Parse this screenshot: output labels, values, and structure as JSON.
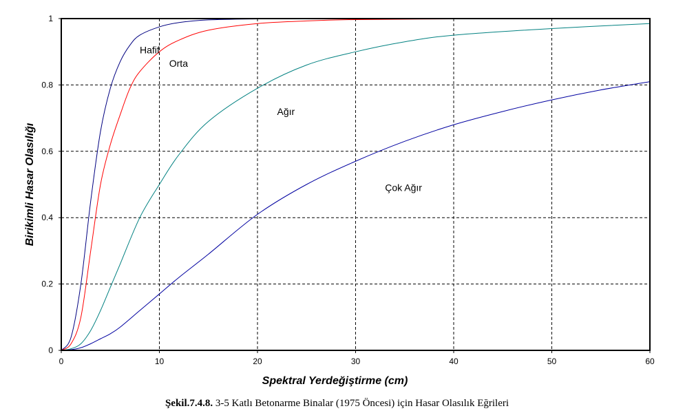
{
  "chart_data": {
    "type": "line",
    "xlabel": "Spektral Yerdeğiştirme  (cm)",
    "ylabel": "Birikimli Hasar Olasılığı",
    "xlim": [
      0,
      60
    ],
    "ylim": [
      0,
      1
    ],
    "x_ticks": [
      "0",
      "10",
      "20",
      "30",
      "40",
      "50",
      "60"
    ],
    "y_ticks": [
      "0",
      "0.2",
      "0.4",
      "0.6",
      "0.8",
      "1"
    ],
    "grid": true,
    "series": [
      {
        "name": "Hafif",
        "color": "#000080",
        "x": [
          0,
          1,
          2,
          3,
          4,
          5,
          6,
          7,
          8,
          10,
          12,
          15,
          20,
          25,
          30,
          40,
          50,
          60
        ],
        "y": [
          0,
          0.04,
          0.2,
          0.45,
          0.66,
          0.79,
          0.87,
          0.92,
          0.95,
          0.975,
          0.988,
          0.996,
          0.999,
          1,
          1,
          1,
          1,
          1
        ]
      },
      {
        "name": "Orta",
        "color": "#ff0000",
        "x": [
          0,
          1,
          2,
          3,
          4,
          5,
          6,
          7,
          8,
          10,
          12,
          15,
          20,
          25,
          30,
          40,
          50,
          60
        ],
        "y": [
          0,
          0.02,
          0.1,
          0.3,
          0.5,
          0.62,
          0.71,
          0.79,
          0.84,
          0.9,
          0.935,
          0.965,
          0.985,
          0.993,
          0.997,
          0.999,
          1,
          1
        ]
      },
      {
        "name": "Ağır",
        "color": "#008080",
        "x": [
          0,
          1,
          2,
          3,
          4,
          5,
          6,
          8,
          10,
          12,
          15,
          20,
          25,
          30,
          35,
          40,
          50,
          60
        ],
        "y": [
          0,
          0.005,
          0.02,
          0.06,
          0.12,
          0.19,
          0.26,
          0.4,
          0.5,
          0.59,
          0.69,
          0.79,
          0.86,
          0.9,
          0.93,
          0.95,
          0.97,
          0.985
        ]
      },
      {
        "name": "Çok Ağır",
        "color": "#0000a0",
        "x": [
          0,
          1,
          2,
          3,
          4,
          5,
          6,
          8,
          10,
          12,
          15,
          20,
          25,
          30,
          35,
          40,
          45,
          50,
          55,
          60
        ],
        "y": [
          0,
          0.002,
          0.008,
          0.02,
          0.035,
          0.05,
          0.07,
          0.12,
          0.17,
          0.22,
          0.29,
          0.41,
          0.5,
          0.57,
          0.63,
          0.68,
          0.72,
          0.755,
          0.785,
          0.81
        ]
      }
    ],
    "annotations": [
      {
        "text": "Hafif",
        "x": 8,
        "y": 0.895
      },
      {
        "text": "Orta",
        "x": 11,
        "y": 0.855
      },
      {
        "text": "Ağır",
        "x": 22,
        "y": 0.71
      },
      {
        "text": "Çok Ağır",
        "x": 33,
        "y": 0.48
      }
    ]
  },
  "caption": {
    "bold": "Şekil.7.4.8.",
    "text": " 3-5 Katlı Betonarme Binalar (1975 Öncesi) için Hasar Olasılık Eğrileri"
  }
}
